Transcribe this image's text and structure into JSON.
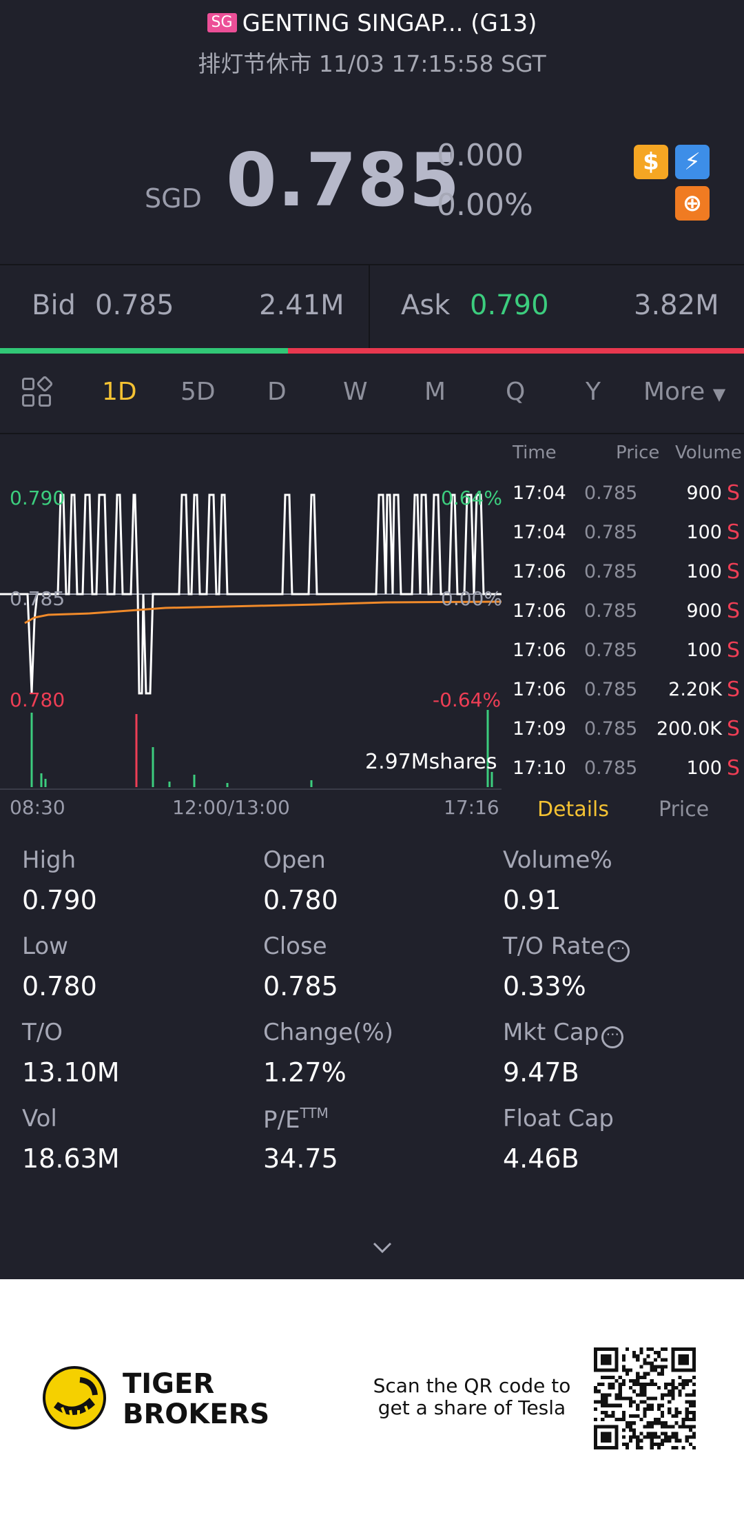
{
  "header": {
    "badge": "SG",
    "title": "GENTING SINGAP... (G13)",
    "status": "排灯节休市 11/03 17:15:58 SGT"
  },
  "quote": {
    "currency": "SGD",
    "price": "0.785",
    "change": "0.000",
    "change_pct": "0.00%",
    "icons": [
      "dollar-icon",
      "flash-icon",
      "margin-icon"
    ],
    "icon_glyphs": {
      "dollar": "$",
      "flash": "⚡",
      "margin": "⊕"
    }
  },
  "orderbook": {
    "bid_label": "Bid",
    "bid_price": "0.785",
    "bid_size": "2.41M",
    "ask_label": "Ask",
    "ask_price": "0.790",
    "ask_size": "3.82M",
    "bid_ratio": 0.387
  },
  "tabs": [
    "1D",
    "5D",
    "D",
    "W",
    "M",
    "Q",
    "Y",
    "More"
  ],
  "active_tab": "1D",
  "chart": {
    "y_high": "0.790",
    "y_mid": "0.785",
    "y_low": "0.780",
    "pct_high": "0.64%",
    "pct_mid": "0.00%",
    "pct_low": "-0.64%",
    "volume_label": "2.97Mshares",
    "x_labels": [
      "08:30",
      "12:00/13:00",
      "17:16"
    ]
  },
  "trades": {
    "headers": {
      "time": "Time",
      "price": "Price",
      "volume": "Volume"
    },
    "rows": [
      {
        "time": "17:04",
        "price": "0.785",
        "volume": "900",
        "side": "S"
      },
      {
        "time": "17:04",
        "price": "0.785",
        "volume": "100",
        "side": "S"
      },
      {
        "time": "17:06",
        "price": "0.785",
        "volume": "100",
        "side": "S"
      },
      {
        "time": "17:06",
        "price": "0.785",
        "volume": "900",
        "side": "S"
      },
      {
        "time": "17:06",
        "price": "0.785",
        "volume": "100",
        "side": "S"
      },
      {
        "time": "17:06",
        "price": "0.785",
        "volume": "2.20K",
        "side": "S"
      },
      {
        "time": "17:09",
        "price": "0.785",
        "volume": "200.0K",
        "side": "S"
      },
      {
        "time": "17:10",
        "price": "0.785",
        "volume": "100",
        "side": "S"
      }
    ],
    "tab_details": "Details",
    "tab_price": "Price"
  },
  "stats": {
    "high_label": "High",
    "high": "0.790",
    "open_label": "Open",
    "open": "0.780",
    "volpct_label": "Volume%",
    "volpct": "0.91",
    "low_label": "Low",
    "low": "0.780",
    "close_label": "Close",
    "close": "0.785",
    "torate_label": "T/O Rate",
    "torate": "0.33%",
    "to_label": "T/O",
    "to": "13.10M",
    "change_label": "Change(%)",
    "change": "1.27%",
    "mktcap_label": "Mkt Cap",
    "mktcap": "9.47B",
    "vol_label": "Vol",
    "vol": "18.63M",
    "pe_label": "P/E",
    "pe_sup": "TTM",
    "pe": "34.75",
    "floatcap_label": "Float Cap",
    "floatcap": "4.46B"
  },
  "footer": {
    "brand_line1": "TIGER",
    "brand_line2": "BROKERS",
    "scan_text": "Scan the QR code to get a share of Tesla"
  },
  "colors": {
    "background": "#20212b",
    "green": "#3ccd7e",
    "red": "#ee3e55",
    "accent": "#f4c233",
    "avg_line": "#f08a2a"
  }
}
